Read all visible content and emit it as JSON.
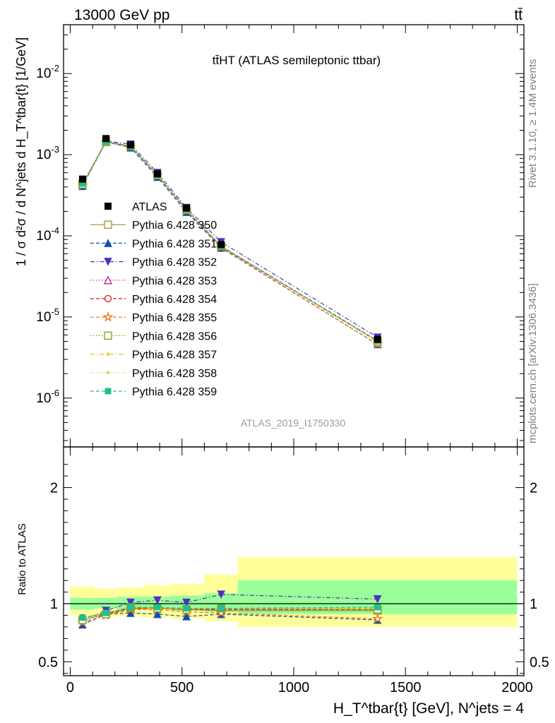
{
  "header": {
    "energy_label": "13000 GeV pp",
    "process_label": "tt̄"
  },
  "side_labels": {
    "rivet": "Rivet 3.1.10, ≥ 1.4M events",
    "mcplots": "mcplots.cern.ch [arXiv:1306.3436]"
  },
  "chart_data": [
    {
      "type": "line",
      "title": "tt̄HT (ATLAS semileptonic ttbar)",
      "analysis_label": "ATLAS_2019_I1750330",
      "ylabel": "1 / σ d²σ / d N^jets d H_T^tbar{t} [1/GeV]",
      "yscale": "log",
      "xlim": [
        -30,
        2030
      ],
      "ylim": [
        2.5e-07,
        0.04
      ],
      "x": [
        55,
        160,
        270,
        390,
        520,
        675,
        1375
      ],
      "x_bins": [
        [
          0,
          110
        ],
        [
          110,
          210
        ],
        [
          210,
          330
        ],
        [
          330,
          450
        ],
        [
          450,
          600
        ],
        [
          600,
          750
        ],
        [
          750,
          2000
        ]
      ],
      "y_ticks": [
        "10^-6",
        "10^-5",
        "10^-4",
        "10^-3",
        "10^-2"
      ],
      "legend_position": "left-middle",
      "data": {
        "name": "ATLAS",
        "values": [
          0.0005,
          0.00158,
          0.00132,
          0.00058,
          0.00022,
          7.8e-05,
          5.3e-06
        ]
      },
      "series": [
        {
          "name": "Pythia 6.428 350",
          "color": "#a09030",
          "marker": "open-square",
          "dash": "solid",
          "values": [
            0.00043,
            0.00143,
            0.00127,
            0.00056,
            0.00021,
            7.4e-05,
            5e-06
          ]
        },
        {
          "name": "Pythia 6.428 351",
          "color": "#1050b0",
          "marker": "filled-triangle-up",
          "dash": "dashed",
          "values": [
            0.00041,
            0.00144,
            0.00122,
            0.00053,
            0.000196,
            7.1e-05,
            4.6e-06
          ]
        },
        {
          "name": "Pythia 6.428 352",
          "color": "#5030c0",
          "marker": "filled-triangle-down",
          "dash": "dashdot",
          "values": [
            0.00043,
            0.00148,
            0.00134,
            0.0006,
            0.000222,
            8.4e-05,
            5.6e-06
          ]
        },
        {
          "name": "Pythia 6.428 353",
          "color": "#c02090",
          "marker": "open-triangle-up",
          "dash": "dotted",
          "values": [
            0.000435,
            0.00145,
            0.00128,
            0.00056,
            0.000208,
            7.4e-05,
            5e-06
          ]
        },
        {
          "name": "Pythia 6.428 354",
          "color": "#e01010",
          "marker": "open-circle",
          "dash": "dashed",
          "values": [
            0.00044,
            0.00144,
            0.00127,
            0.00056,
            0.000208,
            7.4e-05,
            5e-06
          ]
        },
        {
          "name": "Pythia 6.428 355",
          "color": "#f07010",
          "marker": "open-star",
          "dash": "dashed",
          "values": [
            0.00042,
            0.00143,
            0.00126,
            0.00055,
            0.000205,
            7.2e-05,
            4.6e-06
          ]
        },
        {
          "name": "Pythia 6.428 356",
          "color": "#80a010",
          "marker": "open-square",
          "dash": "dotted",
          "values": [
            0.00043,
            0.00144,
            0.00128,
            0.00056,
            0.00021,
            7.5e-05,
            5e-06
          ]
        },
        {
          "name": "Pythia 6.428 357",
          "color": "#e0c020",
          "marker": "small-cross",
          "dash": "dashdot",
          "values": [
            0.000435,
            0.00145,
            0.00128,
            0.00056,
            0.00021,
            7.5e-05,
            5e-06
          ]
        },
        {
          "name": "Pythia 6.428 358",
          "color": "#d0d040",
          "marker": "small-dot",
          "dash": "dotted",
          "values": [
            0.000435,
            0.00146,
            0.00128,
            0.00056,
            0.00021,
            7.5e-05,
            5.1e-06
          ]
        },
        {
          "name": "Pythia 6.428 359",
          "color": "#20c090",
          "marker": "filled-square",
          "dash": "dashed",
          "values": [
            0.00044,
            0.00145,
            0.00128,
            0.000565,
            0.000212,
            7.5e-05,
            5.1e-06
          ]
        }
      ]
    },
    {
      "type": "line",
      "ylabel": "Ratio to ATLAS",
      "xlabel": "H_T^tbar{t} [GeV], N^jets = 4",
      "xlim": [
        -30,
        2030
      ],
      "ylim": [
        0.38,
        2.35
      ],
      "x_ticks": [
        0,
        500,
        1000,
        1500,
        2000
      ],
      "y_ticks": [
        0.5,
        1,
        2
      ],
      "bands": {
        "x_edges": [
          0,
          110,
          210,
          330,
          450,
          600,
          750,
          2000
        ],
        "stat_lo": [
          0.95,
          0.96,
          0.95,
          0.96,
          0.94,
          0.93,
          0.91
        ],
        "stat_hi": [
          1.05,
          1.05,
          1.06,
          1.06,
          1.07,
          1.09,
          1.2
        ],
        "total_lo": [
          0.9,
          0.89,
          0.89,
          0.88,
          0.87,
          0.85,
          0.8
        ],
        "total_hi": [
          1.15,
          1.13,
          1.14,
          1.16,
          1.17,
          1.25,
          1.4
        ]
      },
      "series": [
        {
          "name": "Pythia 6.428 350",
          "values": [
            0.86,
            0.91,
            0.96,
            0.96,
            0.95,
            0.94,
            0.94
          ]
        },
        {
          "name": "Pythia 6.428 351",
          "values": [
            0.82,
            0.91,
            0.92,
            0.91,
            0.89,
            0.91,
            0.86
          ]
        },
        {
          "name": "Pythia 6.428 352",
          "values": [
            0.86,
            0.94,
            1.01,
            1.03,
            1.01,
            1.08,
            1.04
          ]
        },
        {
          "name": "Pythia 6.428 353",
          "values": [
            0.87,
            0.92,
            0.97,
            0.96,
            0.95,
            0.95,
            0.95
          ]
        },
        {
          "name": "Pythia 6.428 354",
          "values": [
            0.88,
            0.91,
            0.96,
            0.96,
            0.95,
            0.95,
            0.95
          ]
        },
        {
          "name": "Pythia 6.428 355",
          "values": [
            0.84,
            0.9,
            0.95,
            0.95,
            0.93,
            0.92,
            0.87
          ]
        },
        {
          "name": "Pythia 6.428 356",
          "values": [
            0.86,
            0.91,
            0.97,
            0.96,
            0.95,
            0.96,
            0.95
          ]
        },
        {
          "name": "Pythia 6.428 357",
          "values": [
            0.87,
            0.92,
            0.97,
            0.96,
            0.96,
            0.96,
            0.96
          ]
        },
        {
          "name": "Pythia 6.428 358",
          "values": [
            0.87,
            0.92,
            0.97,
            0.97,
            0.96,
            0.96,
            0.96
          ]
        },
        {
          "name": "Pythia 6.428 359",
          "values": [
            0.88,
            0.92,
            0.97,
            0.97,
            0.96,
            0.96,
            0.97
          ]
        }
      ]
    }
  ]
}
